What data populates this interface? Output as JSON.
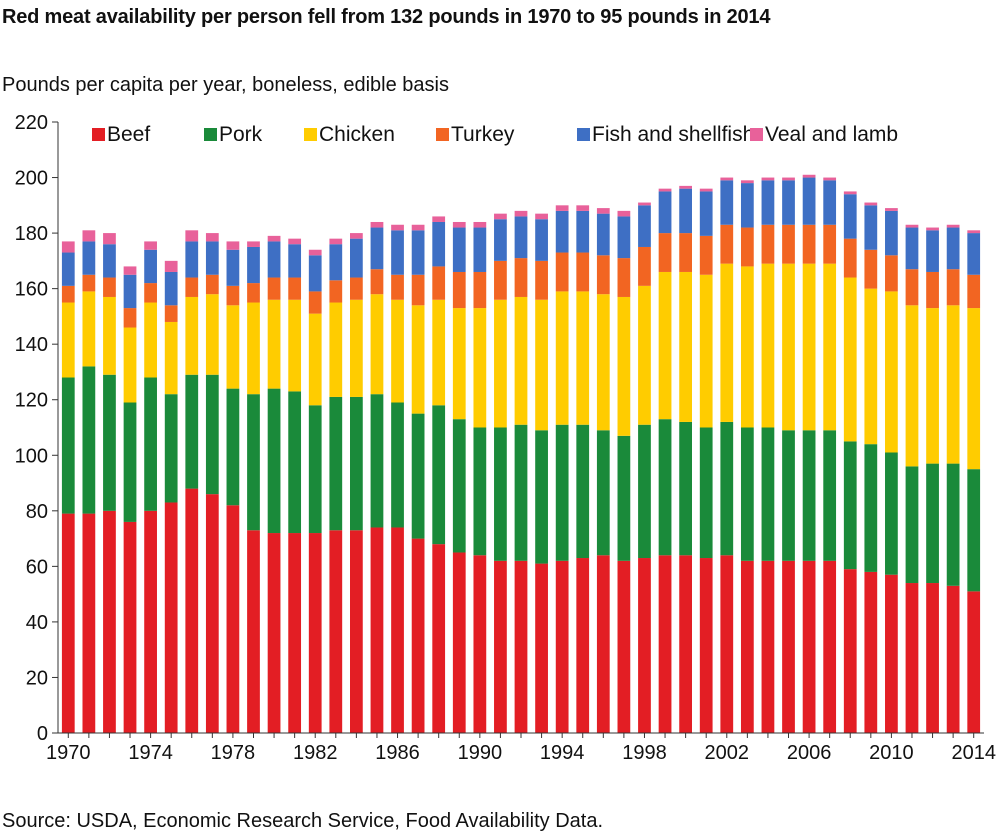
{
  "chart_data": {
    "type": "bar",
    "stacked": true,
    "title": "Red meat availability per person fell from 132 pounds in 1970 to 95 pounds in 2014",
    "ylabel": "Pounds per capita per year, boneless, edible basis",
    "xlabel": "",
    "source": "Source: USDA, Economic Research Service, Food Availability Data.",
    "ylim": [
      0,
      220
    ],
    "yticks": [
      0,
      20,
      40,
      60,
      80,
      100,
      120,
      140,
      160,
      180,
      200,
      220
    ],
    "xtick_labels": [
      "1970",
      "1974",
      "1978",
      "1982",
      "1986",
      "1990",
      "1994",
      "1998",
      "2002",
      "2006",
      "2010",
      "2014"
    ],
    "legend_position": "top",
    "categories": [
      "1970",
      "1971",
      "1972",
      "1973",
      "1974",
      "1975",
      "1976",
      "1977",
      "1978",
      "1979",
      "1980",
      "1981",
      "1982",
      "1983",
      "1984",
      "1985",
      "1986",
      "1987",
      "1988",
      "1989",
      "1990",
      "1991",
      "1992",
      "1993",
      "1994",
      "1995",
      "1996",
      "1997",
      "1998",
      "1999",
      "2000",
      "2001",
      "2002",
      "2003",
      "2004",
      "2005",
      "2006",
      "2007",
      "2008",
      "2009",
      "2010",
      "2011",
      "2012",
      "2013",
      "2014"
    ],
    "series": [
      {
        "name": "Beef",
        "color": "#e31e24",
        "values": [
          79,
          79,
          80,
          76,
          80,
          83,
          88,
          86,
          82,
          73,
          72,
          72,
          72,
          73,
          73,
          74,
          74,
          70,
          68,
          65,
          64,
          62,
          62,
          61,
          62,
          63,
          64,
          62,
          63,
          64,
          64,
          63,
          64,
          62,
          62,
          62,
          62,
          62,
          59,
          58,
          57,
          54,
          54,
          53,
          51
        ]
      },
      {
        "name": "Pork",
        "color": "#1a8a3a",
        "values": [
          49,
          53,
          49,
          43,
          48,
          39,
          41,
          43,
          42,
          49,
          52,
          51,
          46,
          48,
          48,
          48,
          45,
          45,
          50,
          48,
          46,
          48,
          49,
          48,
          49,
          48,
          45,
          45,
          48,
          49,
          48,
          47,
          48,
          48,
          48,
          47,
          47,
          47,
          46,
          46,
          44,
          42,
          43,
          44,
          44
        ]
      },
      {
        "name": "Chicken",
        "color": "#ffcc00",
        "values": [
          27,
          27,
          28,
          27,
          27,
          26,
          28,
          29,
          30,
          33,
          32,
          33,
          33,
          34,
          35,
          36,
          37,
          39,
          38,
          40,
          43,
          46,
          46,
          47,
          48,
          48,
          49,
          50,
          50,
          53,
          54,
          55,
          57,
          58,
          59,
          60,
          60,
          60,
          59,
          56,
          58,
          58,
          56,
          57,
          58
        ]
      },
      {
        "name": "Turkey",
        "color": "#f26522",
        "values": [
          6,
          6,
          7,
          7,
          7,
          6,
          7,
          7,
          7,
          7,
          8,
          8,
          8,
          8,
          8,
          9,
          9,
          11,
          12,
          13,
          13,
          14,
          14,
          14,
          14,
          14,
          14,
          14,
          14,
          14,
          14,
          14,
          14,
          14,
          14,
          14,
          14,
          14,
          14,
          14,
          13,
          13,
          13,
          13,
          12
        ]
      },
      {
        "name": "Fish and shellfish",
        "color": "#3e6fc4",
        "values": [
          12,
          12,
          12,
          12,
          12,
          12,
          13,
          12,
          13,
          13,
          13,
          12,
          13,
          13,
          14,
          15,
          16,
          16,
          16,
          16,
          16,
          15,
          15,
          15,
          15,
          15,
          15,
          15,
          15,
          15,
          16,
          16,
          16,
          16,
          16,
          16,
          17,
          16,
          16,
          16,
          16,
          15,
          15,
          15,
          15
        ]
      },
      {
        "name": "Veal and lamb",
        "color": "#e8619a",
        "values": [
          4,
          4,
          4,
          3,
          3,
          4,
          4,
          3,
          3,
          2,
          2,
          2,
          2,
          2,
          2,
          2,
          2,
          2,
          2,
          2,
          2,
          2,
          2,
          2,
          2,
          2,
          2,
          2,
          1,
          1,
          1,
          1,
          1,
          1,
          1,
          1,
          1,
          1,
          1,
          1,
          1,
          1,
          1,
          1,
          1
        ]
      }
    ]
  }
}
